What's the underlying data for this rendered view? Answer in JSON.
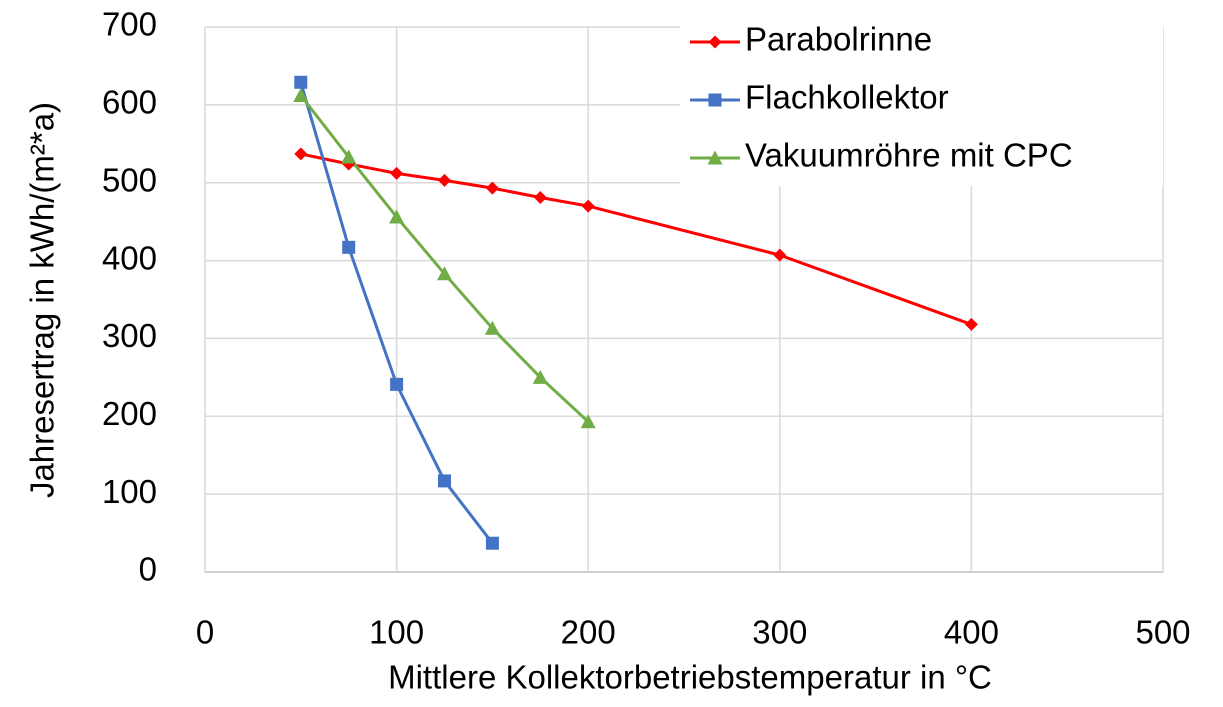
{
  "chart_data": {
    "type": "line",
    "xlabel": "Mittlere Kollektorbetriebstemperatur in °C",
    "ylabel": "Jahresertrag in kWh/(m²*a)",
    "xlim": [
      0,
      500
    ],
    "xticks": [
      0,
      100,
      200,
      300,
      400,
      500
    ],
    "ylim": [
      0,
      700
    ],
    "yticks": [
      0,
      100,
      200,
      300,
      400,
      500,
      600,
      700
    ],
    "grid": true,
    "legend": "upper right",
    "series": [
      {
        "name": "Parabolrinne",
        "color": "#ff0000",
        "marker": "diamond",
        "x": [
          50,
          75,
          100,
          125,
          150,
          175,
          200,
          300,
          400
        ],
        "values": [
          537,
          524,
          512,
          503,
          493,
          481,
          470,
          407,
          318
        ]
      },
      {
        "name": "Flachkollektor",
        "color": "#4472c4",
        "marker": "square",
        "x": [
          50,
          75,
          100,
          125,
          150
        ],
        "values": [
          629,
          417,
          241,
          117,
          37
        ]
      },
      {
        "name": "Vakuumröhre mit CPC",
        "color": "#70ad47",
        "marker": "triangle",
        "x": [
          50,
          75,
          100,
          125,
          150,
          175,
          200
        ],
        "values": [
          612,
          533,
          456,
          383,
          313,
          250,
          193
        ]
      }
    ]
  }
}
